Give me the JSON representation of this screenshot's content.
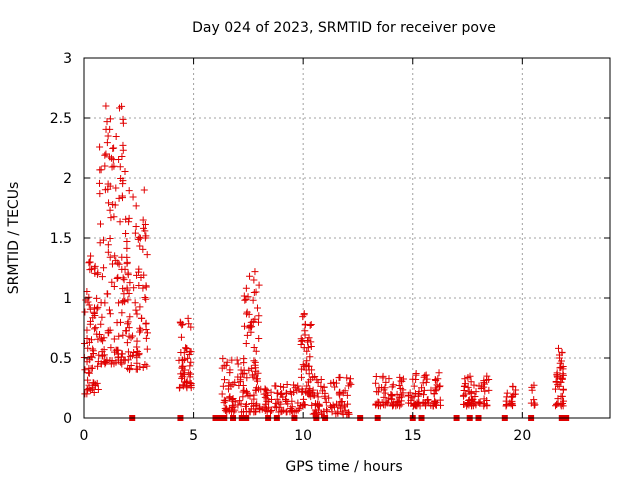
{
  "chart_data": {
    "type": "scatter",
    "title": "Day 024 of 2023, SRMTID for receiver pove",
    "xlabel": "GPS time / hours",
    "ylabel": "SRMTID / TECUs",
    "xlim": [
      0,
      24
    ],
    "ylim": [
      0,
      3
    ],
    "xticks": [
      0,
      5,
      10,
      15,
      20
    ],
    "yticks": [
      0,
      0.5,
      1,
      1.5,
      2,
      2.5,
      3
    ],
    "xtick_labels": [
      "0",
      "5",
      "10",
      "15",
      "20"
    ],
    "ytick_labels": [
      "0",
      "0.5",
      "1",
      "1.5",
      "2",
      "2.5",
      "3"
    ],
    "grid": true,
    "legend": "none",
    "marker": "plus",
    "color": "#e00000",
    "zero_markers": [
      2.2,
      4.4,
      6.0,
      6.2,
      6.4,
      6.8,
      7.2,
      7.4,
      8.4,
      8.8,
      9.6,
      10.6,
      11.0,
      12.6,
      13.4,
      15.0,
      15.4,
      17.0,
      17.6,
      18.0,
      19.2,
      20.4,
      21.8,
      22.0
    ],
    "clusters": [
      {
        "x_start": 0.0,
        "x_end": 0.7,
        "y_min": 0.2,
        "y_max": 1.35,
        "count": 70
      },
      {
        "x_start": 0.7,
        "x_end": 1.9,
        "y_min": 0.45,
        "y_max": 2.6,
        "count": 130
      },
      {
        "x_start": 1.9,
        "x_end": 2.9,
        "y_min": 0.4,
        "y_max": 1.9,
        "count": 90
      },
      {
        "x_start": 4.3,
        "x_end": 4.9,
        "y_min": 0.25,
        "y_max": 0.85,
        "count": 50
      },
      {
        "x_start": 6.3,
        "x_end": 7.3,
        "y_min": 0.05,
        "y_max": 0.5,
        "count": 60
      },
      {
        "x_start": 7.3,
        "x_end": 8.0,
        "y_min": 0.05,
        "y_max": 1.22,
        "count": 70
      },
      {
        "x_start": 8.0,
        "x_end": 8.6,
        "y_min": 0.05,
        "y_max": 0.25,
        "count": 25
      },
      {
        "x_start": 8.7,
        "x_end": 9.9,
        "y_min": 0.05,
        "y_max": 0.3,
        "count": 50
      },
      {
        "x_start": 9.9,
        "x_end": 10.4,
        "y_min": 0.1,
        "y_max": 0.87,
        "count": 55
      },
      {
        "x_start": 10.4,
        "x_end": 12.2,
        "y_min": 0.03,
        "y_max": 0.35,
        "count": 80
      },
      {
        "x_start": 13.3,
        "x_end": 14.6,
        "y_min": 0.1,
        "y_max": 0.35,
        "count": 60
      },
      {
        "x_start": 14.8,
        "x_end": 16.3,
        "y_min": 0.1,
        "y_max": 0.38,
        "count": 70
      },
      {
        "x_start": 17.3,
        "x_end": 18.5,
        "y_min": 0.1,
        "y_max": 0.35,
        "count": 60
      },
      {
        "x_start": 19.2,
        "x_end": 19.7,
        "y_min": 0.1,
        "y_max": 0.28,
        "count": 20
      },
      {
        "x_start": 20.4,
        "x_end": 20.6,
        "y_min": 0.1,
        "y_max": 0.28,
        "count": 8
      },
      {
        "x_start": 21.5,
        "x_end": 21.9,
        "y_min": 0.1,
        "y_max": 0.58,
        "count": 40
      }
    ],
    "peaks": [
      {
        "x": 1.0,
        "y": 2.6
      },
      {
        "x": 1.05,
        "y": 2.47
      },
      {
        "x": 1.1,
        "y": 2.35
      },
      {
        "x": 1.0,
        "y": 2.2
      },
      {
        "x": 0.95,
        "y": 2.1
      },
      {
        "x": 1.1,
        "y": 1.95
      },
      {
        "x": 1.75,
        "y": 1.85
      },
      {
        "x": 1.6,
        "y": 1.83
      },
      {
        "x": 2.75,
        "y": 1.9
      },
      {
        "x": 2.7,
        "y": 1.65
      },
      {
        "x": 2.8,
        "y": 1.5
      },
      {
        "x": 7.8,
        "y": 1.22
      },
      {
        "x": 7.75,
        "y": 1.15
      },
      {
        "x": 7.85,
        "y": 1.05
      },
      {
        "x": 10.05,
        "y": 0.87
      },
      {
        "x": 10.1,
        "y": 0.78
      },
      {
        "x": 21.65,
        "y": 0.58
      },
      {
        "x": 21.7,
        "y": 0.5
      },
      {
        "x": 0.3,
        "y": 1.35
      },
      {
        "x": 0.25,
        "y": 1.3
      },
      {
        "x": 4.75,
        "y": 0.83
      },
      {
        "x": 4.5,
        "y": 0.78
      }
    ]
  }
}
